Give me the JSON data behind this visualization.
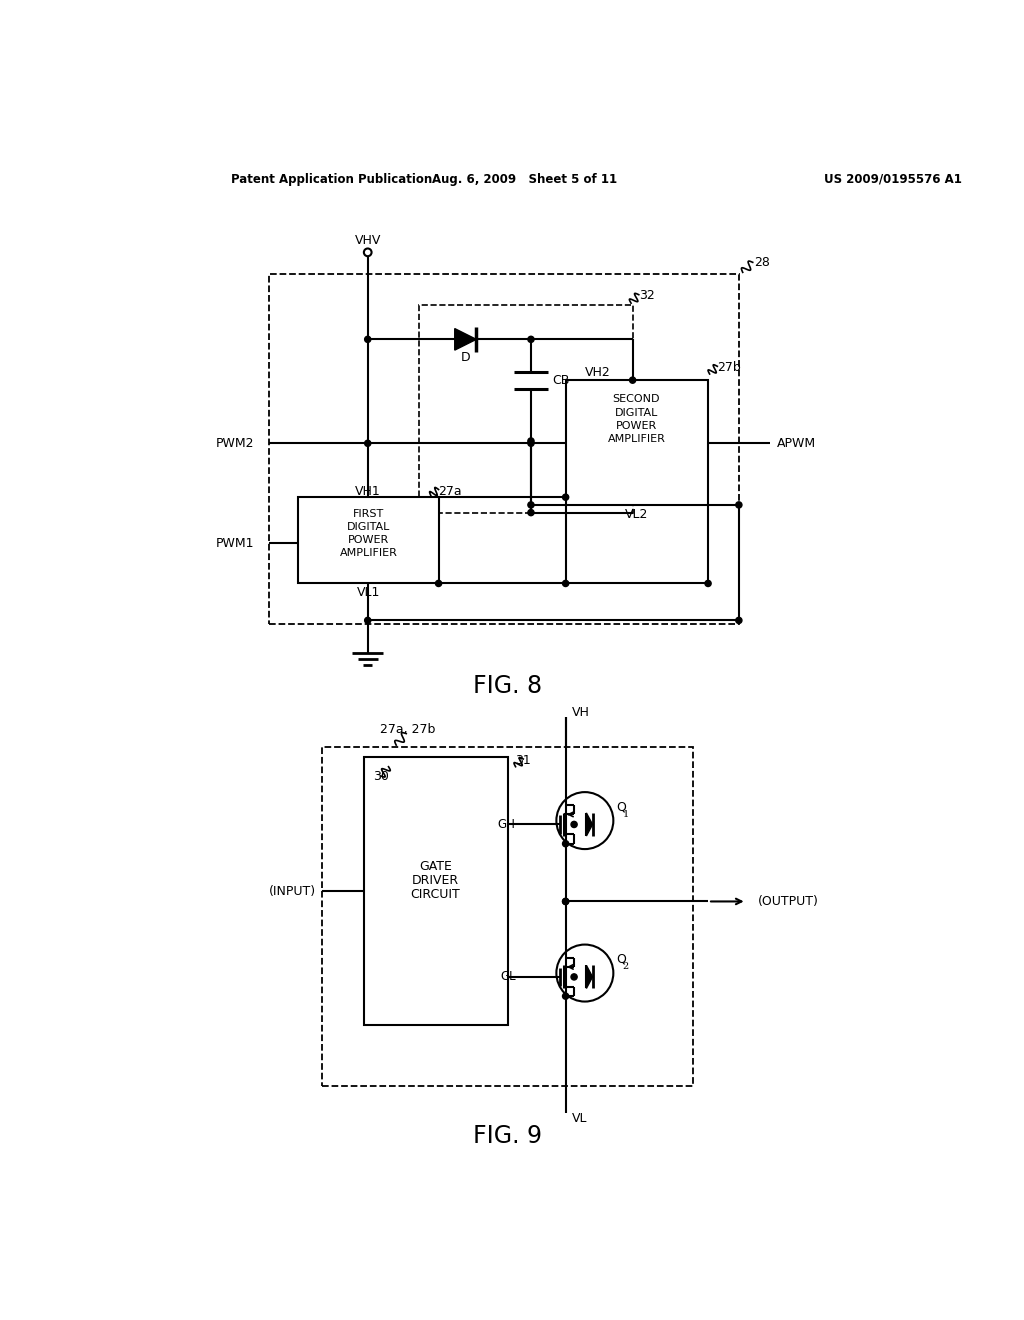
{
  "bg_color": "#ffffff",
  "line_color": "#000000",
  "header_text_left": "Patent Application Publication",
  "header_text_mid": "Aug. 6, 2009   Sheet 5 of 11",
  "header_text_right": "US 2009/0195576 A1",
  "fig8_label": "FIG. 8",
  "fig9_label": "FIG. 9"
}
